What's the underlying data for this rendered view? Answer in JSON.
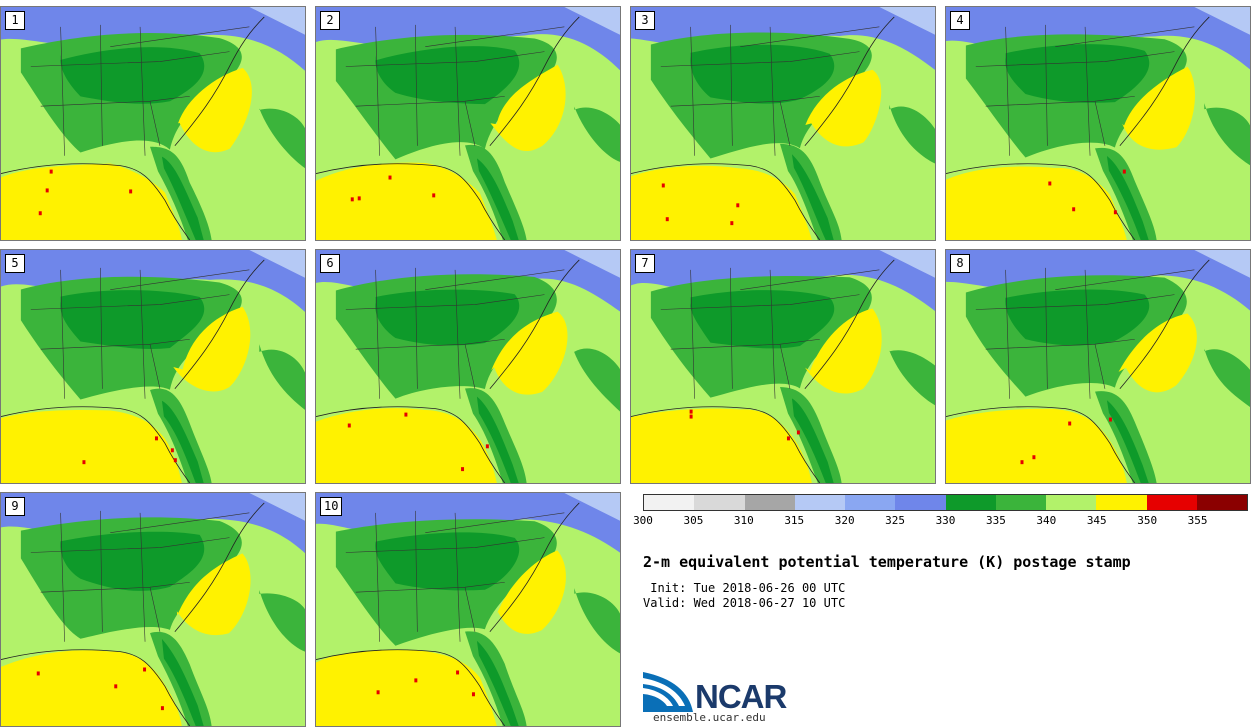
{
  "title": "2-m equivalent potential temperature (K) postage stamp",
  "init": " Init: Tue 2018-06-26 00 UTC",
  "valid": "Valid: Wed 2018-06-27 10 UTC",
  "logo_text": "NCAR",
  "logo_url": "ensemble.ucar.edu",
  "colorbar": {
    "ticks": [
      "300",
      "305",
      "310",
      "315",
      "320",
      "325",
      "330",
      "335",
      "340",
      "345",
      "350",
      "355"
    ],
    "colors": [
      "#f2f2f2",
      "#d9d9d9",
      "#a6a6a6",
      "#b5c9f5",
      "#8aa7f2",
      "#6f86ea",
      "#0e9a2a",
      "#3bb43b",
      "#b2f26a",
      "#fff200",
      "#e60000",
      "#8b0000"
    ]
  },
  "panels": [
    {
      "label": "1"
    },
    {
      "label": "2"
    },
    {
      "label": "3"
    },
    {
      "label": "4"
    },
    {
      "label": "5"
    },
    {
      "label": "6"
    },
    {
      "label": "7"
    },
    {
      "label": "8"
    },
    {
      "label": "9"
    },
    {
      "label": "10"
    }
  ]
}
